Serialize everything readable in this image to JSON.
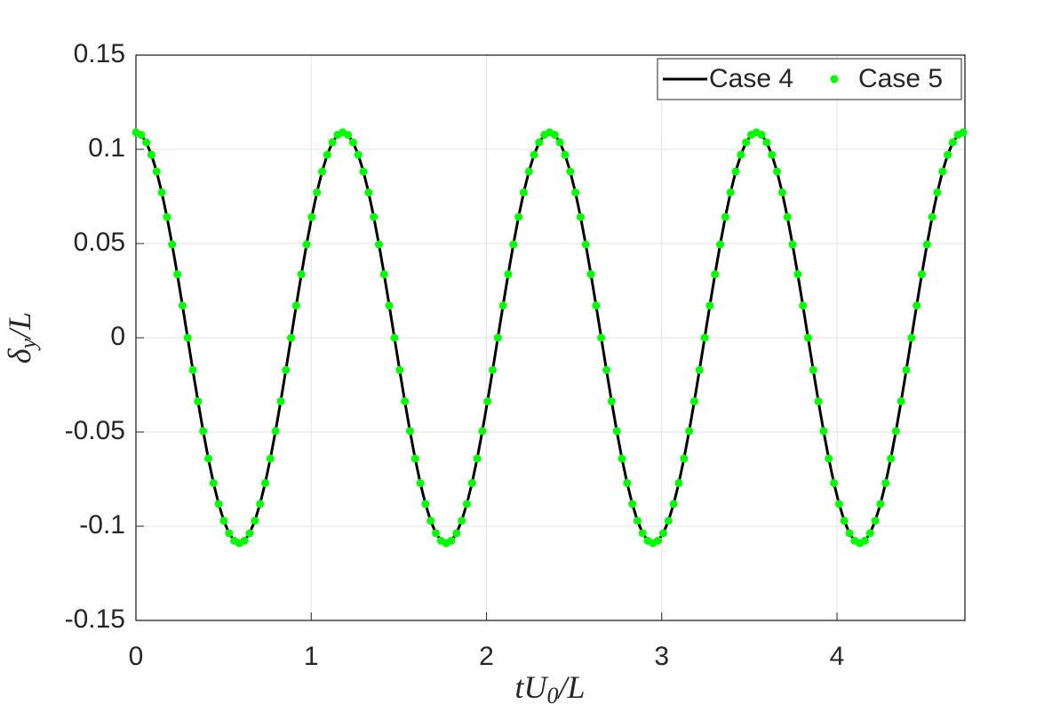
{
  "chart_data": {
    "type": "line",
    "xlabel": [
      "tU",
      "0",
      "/L"
    ],
    "ylabel": [
      "δ",
      "y",
      "/L"
    ],
    "xlim": [
      0,
      4.73
    ],
    "xticks": [
      0,
      1,
      2,
      3,
      4
    ],
    "ylim": [
      -0.15,
      0.15
    ],
    "yticks": [
      -0.15,
      -0.1,
      -0.05,
      0,
      0.05,
      0.1,
      0.15
    ],
    "grid": true,
    "legend": "top-right",
    "x": [
      0,
      0.0295,
      0.059,
      0.0885,
      0.118,
      0.1475,
      0.177,
      0.2065,
      0.236,
      0.2655,
      0.295,
      0.3245,
      0.354,
      0.3835,
      0.413,
      0.4425,
      0.472,
      0.5015,
      0.531,
      0.5605,
      0.59,
      0.6195,
      0.649,
      0.6785,
      0.708,
      0.7375,
      0.767,
      0.7965,
      0.826,
      0.8555,
      0.885,
      0.9145,
      0.944,
      0.9735,
      1.003,
      1.0325,
      1.062,
      1.0915,
      1.121,
      1.1505,
      1.18,
      1.2095,
      1.239,
      1.2685,
      1.298,
      1.3275,
      1.357,
      1.3865,
      1.416,
      1.4455,
      1.475,
      1.5045,
      1.534,
      1.5635,
      1.593,
      1.6225,
      1.652,
      1.6815,
      1.711,
      1.7405,
      1.77,
      1.7995,
      1.829,
      1.8585,
      1.888,
      1.9175,
      1.947,
      1.9765,
      2.006,
      2.0355,
      2.065,
      2.0945,
      2.124,
      2.1535,
      2.183,
      2.2125,
      2.242,
      2.2715,
      2.301,
      2.3305,
      2.36,
      2.3895,
      2.419,
      2.4485,
      2.478,
      2.5075,
      2.537,
      2.5665,
      2.596,
      2.6255,
      2.655,
      2.6845,
      2.714,
      2.7435,
      2.773,
      2.8025,
      2.832,
      2.8615,
      2.891,
      2.9205,
      2.95,
      2.9795,
      3.009,
      3.0385,
      3.068,
      3.0975,
      3.127,
      3.1565,
      3.186,
      3.2155,
      3.245,
      3.2745,
      3.304,
      3.3335,
      3.363,
      3.3925,
      3.422,
      3.4515,
      3.481,
      3.5105,
      3.54,
      3.5695,
      3.599,
      3.6285,
      3.658,
      3.6875,
      3.717,
      3.7465,
      3.776,
      3.8055,
      3.835,
      3.8645,
      3.894,
      3.9235,
      3.953,
      3.9825,
      4.012,
      4.0415,
      4.071,
      4.1005,
      4.13,
      4.1595,
      4.189,
      4.2185,
      4.248,
      4.2775,
      4.307,
      4.3365,
      4.366,
      4.3955,
      4.425,
      4.4545,
      4.484,
      4.5135,
      4.543,
      4.5725,
      4.602,
      4.6315,
      4.661,
      4.6905,
      4.72
    ],
    "series": [
      {
        "name": "Case 4",
        "color": "#000000",
        "mode": "line",
        "values": [
          0.109,
          0.1077,
          0.1037,
          0.0971,
          0.0882,
          0.0771,
          0.0641,
          0.0495,
          0.0337,
          0.0171,
          0,
          -0.0171,
          -0.0337,
          -0.0495,
          -0.0641,
          -0.0771,
          -0.0882,
          -0.0971,
          -0.1037,
          -0.1077,
          -0.109,
          -0.1077,
          -0.1037,
          -0.0971,
          -0.0882,
          -0.0771,
          -0.0641,
          -0.0495,
          -0.0337,
          -0.0171,
          0,
          0.0171,
          0.0337,
          0.0495,
          0.0641,
          0.0771,
          0.0882,
          0.0971,
          0.1037,
          0.1077,
          0.109,
          0.1077,
          0.1037,
          0.0971,
          0.0882,
          0.0771,
          0.0641,
          0.0495,
          0.0337,
          0.0171,
          0,
          -0.0171,
          -0.0337,
          -0.0495,
          -0.0641,
          -0.0771,
          -0.0882,
          -0.0971,
          -0.1037,
          -0.1077,
          -0.109,
          -0.1077,
          -0.1037,
          -0.0971,
          -0.0882,
          -0.0771,
          -0.0641,
          -0.0495,
          -0.0337,
          -0.0171,
          0,
          0.0171,
          0.0337,
          0.0495,
          0.0641,
          0.0771,
          0.0882,
          0.0971,
          0.1037,
          0.1077,
          0.109,
          0.1077,
          0.1037,
          0.0971,
          0.0882,
          0.0771,
          0.0641,
          0.0495,
          0.0337,
          0.0171,
          0,
          -0.0171,
          -0.0337,
          -0.0495,
          -0.0641,
          -0.0771,
          -0.0882,
          -0.0971,
          -0.1037,
          -0.1077,
          -0.109,
          -0.1077,
          -0.1037,
          -0.0971,
          -0.0882,
          -0.0771,
          -0.0641,
          -0.0495,
          -0.0337,
          -0.0171,
          0,
          0.0171,
          0.0337,
          0.0495,
          0.0641,
          0.0771,
          0.0882,
          0.0971,
          0.1037,
          0.1077,
          0.109,
          0.1077,
          0.1037,
          0.0971,
          0.0882,
          0.0771,
          0.0641,
          0.0495,
          0.0337,
          0.0171,
          0,
          -0.0171,
          -0.0337,
          -0.0495,
          -0.0641,
          -0.0771,
          -0.0882,
          -0.0971,
          -0.1037,
          -0.1077,
          -0.109,
          -0.1077,
          -0.1037,
          -0.0971,
          -0.0882,
          -0.0771,
          -0.0641,
          -0.0495,
          -0.0337,
          -0.0171,
          0,
          0.0171,
          0.0337,
          0.0495,
          0.0641,
          0.0771,
          0.0882,
          0.0971,
          0.1037,
          0.1077,
          0.109
        ]
      },
      {
        "name": "Case 5",
        "color": "#00ff00",
        "mode": "markers",
        "values": [
          0.109,
          0.1077,
          0.1037,
          0.0971,
          0.0882,
          0.0771,
          0.0641,
          0.0495,
          0.0337,
          0.0171,
          0,
          -0.0171,
          -0.0337,
          -0.0495,
          -0.0641,
          -0.0771,
          -0.0882,
          -0.0971,
          -0.1037,
          -0.1077,
          -0.109,
          -0.1077,
          -0.1037,
          -0.0971,
          -0.0882,
          -0.0771,
          -0.0641,
          -0.0495,
          -0.0337,
          -0.0171,
          0,
          0.0171,
          0.0337,
          0.0495,
          0.0641,
          0.0771,
          0.0882,
          0.0971,
          0.1037,
          0.1077,
          0.109,
          0.1077,
          0.1037,
          0.0971,
          0.0882,
          0.0771,
          0.0641,
          0.0495,
          0.0337,
          0.0171,
          0,
          -0.0171,
          -0.0337,
          -0.0495,
          -0.0641,
          -0.0771,
          -0.0882,
          -0.0971,
          -0.1037,
          -0.1077,
          -0.109,
          -0.1077,
          -0.1037,
          -0.0971,
          -0.0882,
          -0.0771,
          -0.0641,
          -0.0495,
          -0.0337,
          -0.0171,
          0,
          0.0171,
          0.0337,
          0.0495,
          0.0641,
          0.0771,
          0.0882,
          0.0971,
          0.1037,
          0.1077,
          0.109,
          0.1077,
          0.1037,
          0.0971,
          0.0882,
          0.0771,
          0.0641,
          0.0495,
          0.0337,
          0.0171,
          0,
          -0.0171,
          -0.0337,
          -0.0495,
          -0.0641,
          -0.0771,
          -0.0882,
          -0.0971,
          -0.1037,
          -0.1077,
          -0.109,
          -0.1077,
          -0.1037,
          -0.0971,
          -0.0882,
          -0.0771,
          -0.0641,
          -0.0495,
          -0.0337,
          -0.0171,
          0,
          0.0171,
          0.0337,
          0.0495,
          0.0641,
          0.0771,
          0.0882,
          0.0971,
          0.1037,
          0.1077,
          0.109,
          0.1077,
          0.1037,
          0.0971,
          0.0882,
          0.0771,
          0.0641,
          0.0495,
          0.0337,
          0.0171,
          0,
          -0.0171,
          -0.0337,
          -0.0495,
          -0.0641,
          -0.0771,
          -0.0882,
          -0.0971,
          -0.1037,
          -0.1077,
          -0.109,
          -0.1077,
          -0.1037,
          -0.0971,
          -0.0882,
          -0.0771,
          -0.0641,
          -0.0495,
          -0.0337,
          -0.0171,
          0,
          0.0171,
          0.0337,
          0.0495,
          0.0641,
          0.0771,
          0.0882,
          0.0971,
          0.1037,
          0.1077,
          0.109
        ]
      }
    ]
  }
}
